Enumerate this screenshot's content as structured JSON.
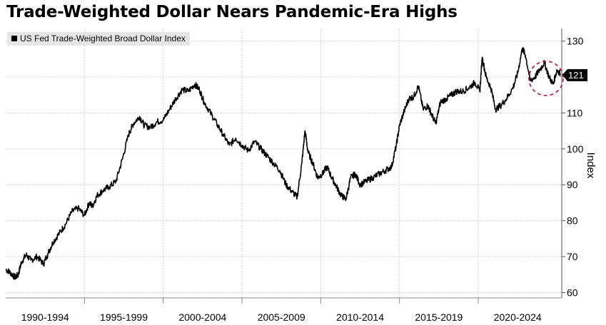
{
  "chart_data": {
    "type": "line",
    "title": "Trade-Weighted Dollar Nears Pandemic-Era Highs",
    "ylabel": "Index",
    "xlabel": "",
    "ylim": [
      58.5,
      133.5
    ],
    "xlim": [
      1990.0,
      2025.3
    ],
    "y_ticks": [
      60,
      70,
      80,
      90,
      100,
      110,
      120,
      130
    ],
    "x_tick_labels": [
      {
        "label": "1990-1994",
        "center": 1992.5
      },
      {
        "label": "1995-1999",
        "center": 1997.5
      },
      {
        "label": "2000-2004",
        "center": 2002.5
      },
      {
        "label": "2005-2009",
        "center": 2007.5
      },
      {
        "label": "2010-2014",
        "center": 2012.5
      },
      {
        "label": "2015-2019",
        "center": 2017.5
      },
      {
        "label": "2020-2024",
        "center": 2022.5
      }
    ],
    "x_separators": [
      1995,
      2000,
      2005,
      2010,
      2015,
      2020
    ],
    "grid": true,
    "legend_position": "top-left",
    "last_value_label": "121",
    "annotation": "dashed red circle around latest values",
    "series": [
      {
        "name": "US Fed Trade-Weighted Broad Dollar Index",
        "color": "#000000",
        "x": [
          1990.0,
          1990.3,
          1990.6,
          1990.8,
          1991.0,
          1991.3,
          1991.6,
          1992.0,
          1992.4,
          1992.7,
          1993.0,
          1993.4,
          1993.8,
          1994.2,
          1994.6,
          1995.0,
          1995.3,
          1995.5,
          1995.8,
          1996.2,
          1996.6,
          1997.0,
          1997.4,
          1997.8,
          1998.1,
          1998.5,
          1998.8,
          1999.2,
          1999.6,
          2000.0,
          2000.4,
          2000.8,
          2001.2,
          2001.6,
          2002.0,
          2002.3,
          2002.6,
          2003.0,
          2003.4,
          2003.8,
          2004.2,
          2004.6,
          2005.0,
          2005.4,
          2005.8,
          2006.2,
          2006.6,
          2007.0,
          2007.4,
          2007.8,
          2008.2,
          2008.5,
          2008.8,
          2009.0,
          2009.2,
          2009.5,
          2009.8,
          2010.1,
          2010.4,
          2010.7,
          2011.0,
          2011.3,
          2011.6,
          2011.9,
          2012.2,
          2012.5,
          2012.9,
          2013.3,
          2013.7,
          2014.1,
          2014.5,
          2014.8,
          2015.0,
          2015.3,
          2015.6,
          2015.9,
          2016.2,
          2016.5,
          2016.8,
          2017.0,
          2017.3,
          2017.6,
          2018.0,
          2018.3,
          2018.6,
          2019.0,
          2019.4,
          2019.8,
          2020.1,
          2020.25,
          2020.5,
          2020.8,
          2021.1,
          2021.4,
          2021.8,
          2022.2,
          2022.5,
          2022.8,
          2023.0,
          2023.3,
          2023.6,
          2023.9,
          2024.2,
          2024.5,
          2024.75,
          2025.0,
          2025.2
        ],
        "values": [
          66.5,
          65.5,
          64.2,
          65.0,
          68.5,
          70.5,
          69.0,
          70.0,
          68.0,
          71.0,
          74.0,
          76.5,
          79.0,
          82.5,
          83.5,
          81.5,
          85.0,
          84.0,
          87.0,
          88.5,
          89.5,
          91.0,
          97.0,
          104.0,
          107.0,
          109.0,
          106.5,
          106.0,
          107.5,
          108.0,
          111.0,
          114.0,
          116.5,
          116.0,
          118.0,
          116.5,
          113.0,
          110.0,
          107.0,
          104.0,
          101.0,
          103.0,
          101.0,
          99.5,
          102.0,
          100.0,
          98.0,
          96.0,
          94.0,
          90.0,
          88.0,
          86.5,
          96.0,
          105.0,
          99.0,
          96.0,
          92.0,
          93.0,
          95.0,
          92.0,
          89.5,
          87.0,
          86.0,
          92.0,
          93.0,
          90.0,
          91.0,
          92.0,
          93.0,
          94.0,
          95.0,
          101.0,
          106.5,
          110.5,
          114.0,
          114.5,
          117.5,
          111.0,
          112.0,
          110.0,
          107.0,
          113.0,
          114.0,
          115.0,
          116.0,
          116.0,
          117.0,
          118.5,
          116.0,
          125.5,
          120.0,
          117.0,
          111.0,
          112.0,
          114.0,
          117.0,
          121.0,
          128.0,
          126.0,
          119.0,
          120.0,
          122.0,
          124.0,
          120.0,
          118.0,
          122.0,
          121.0
        ]
      }
    ]
  }
}
